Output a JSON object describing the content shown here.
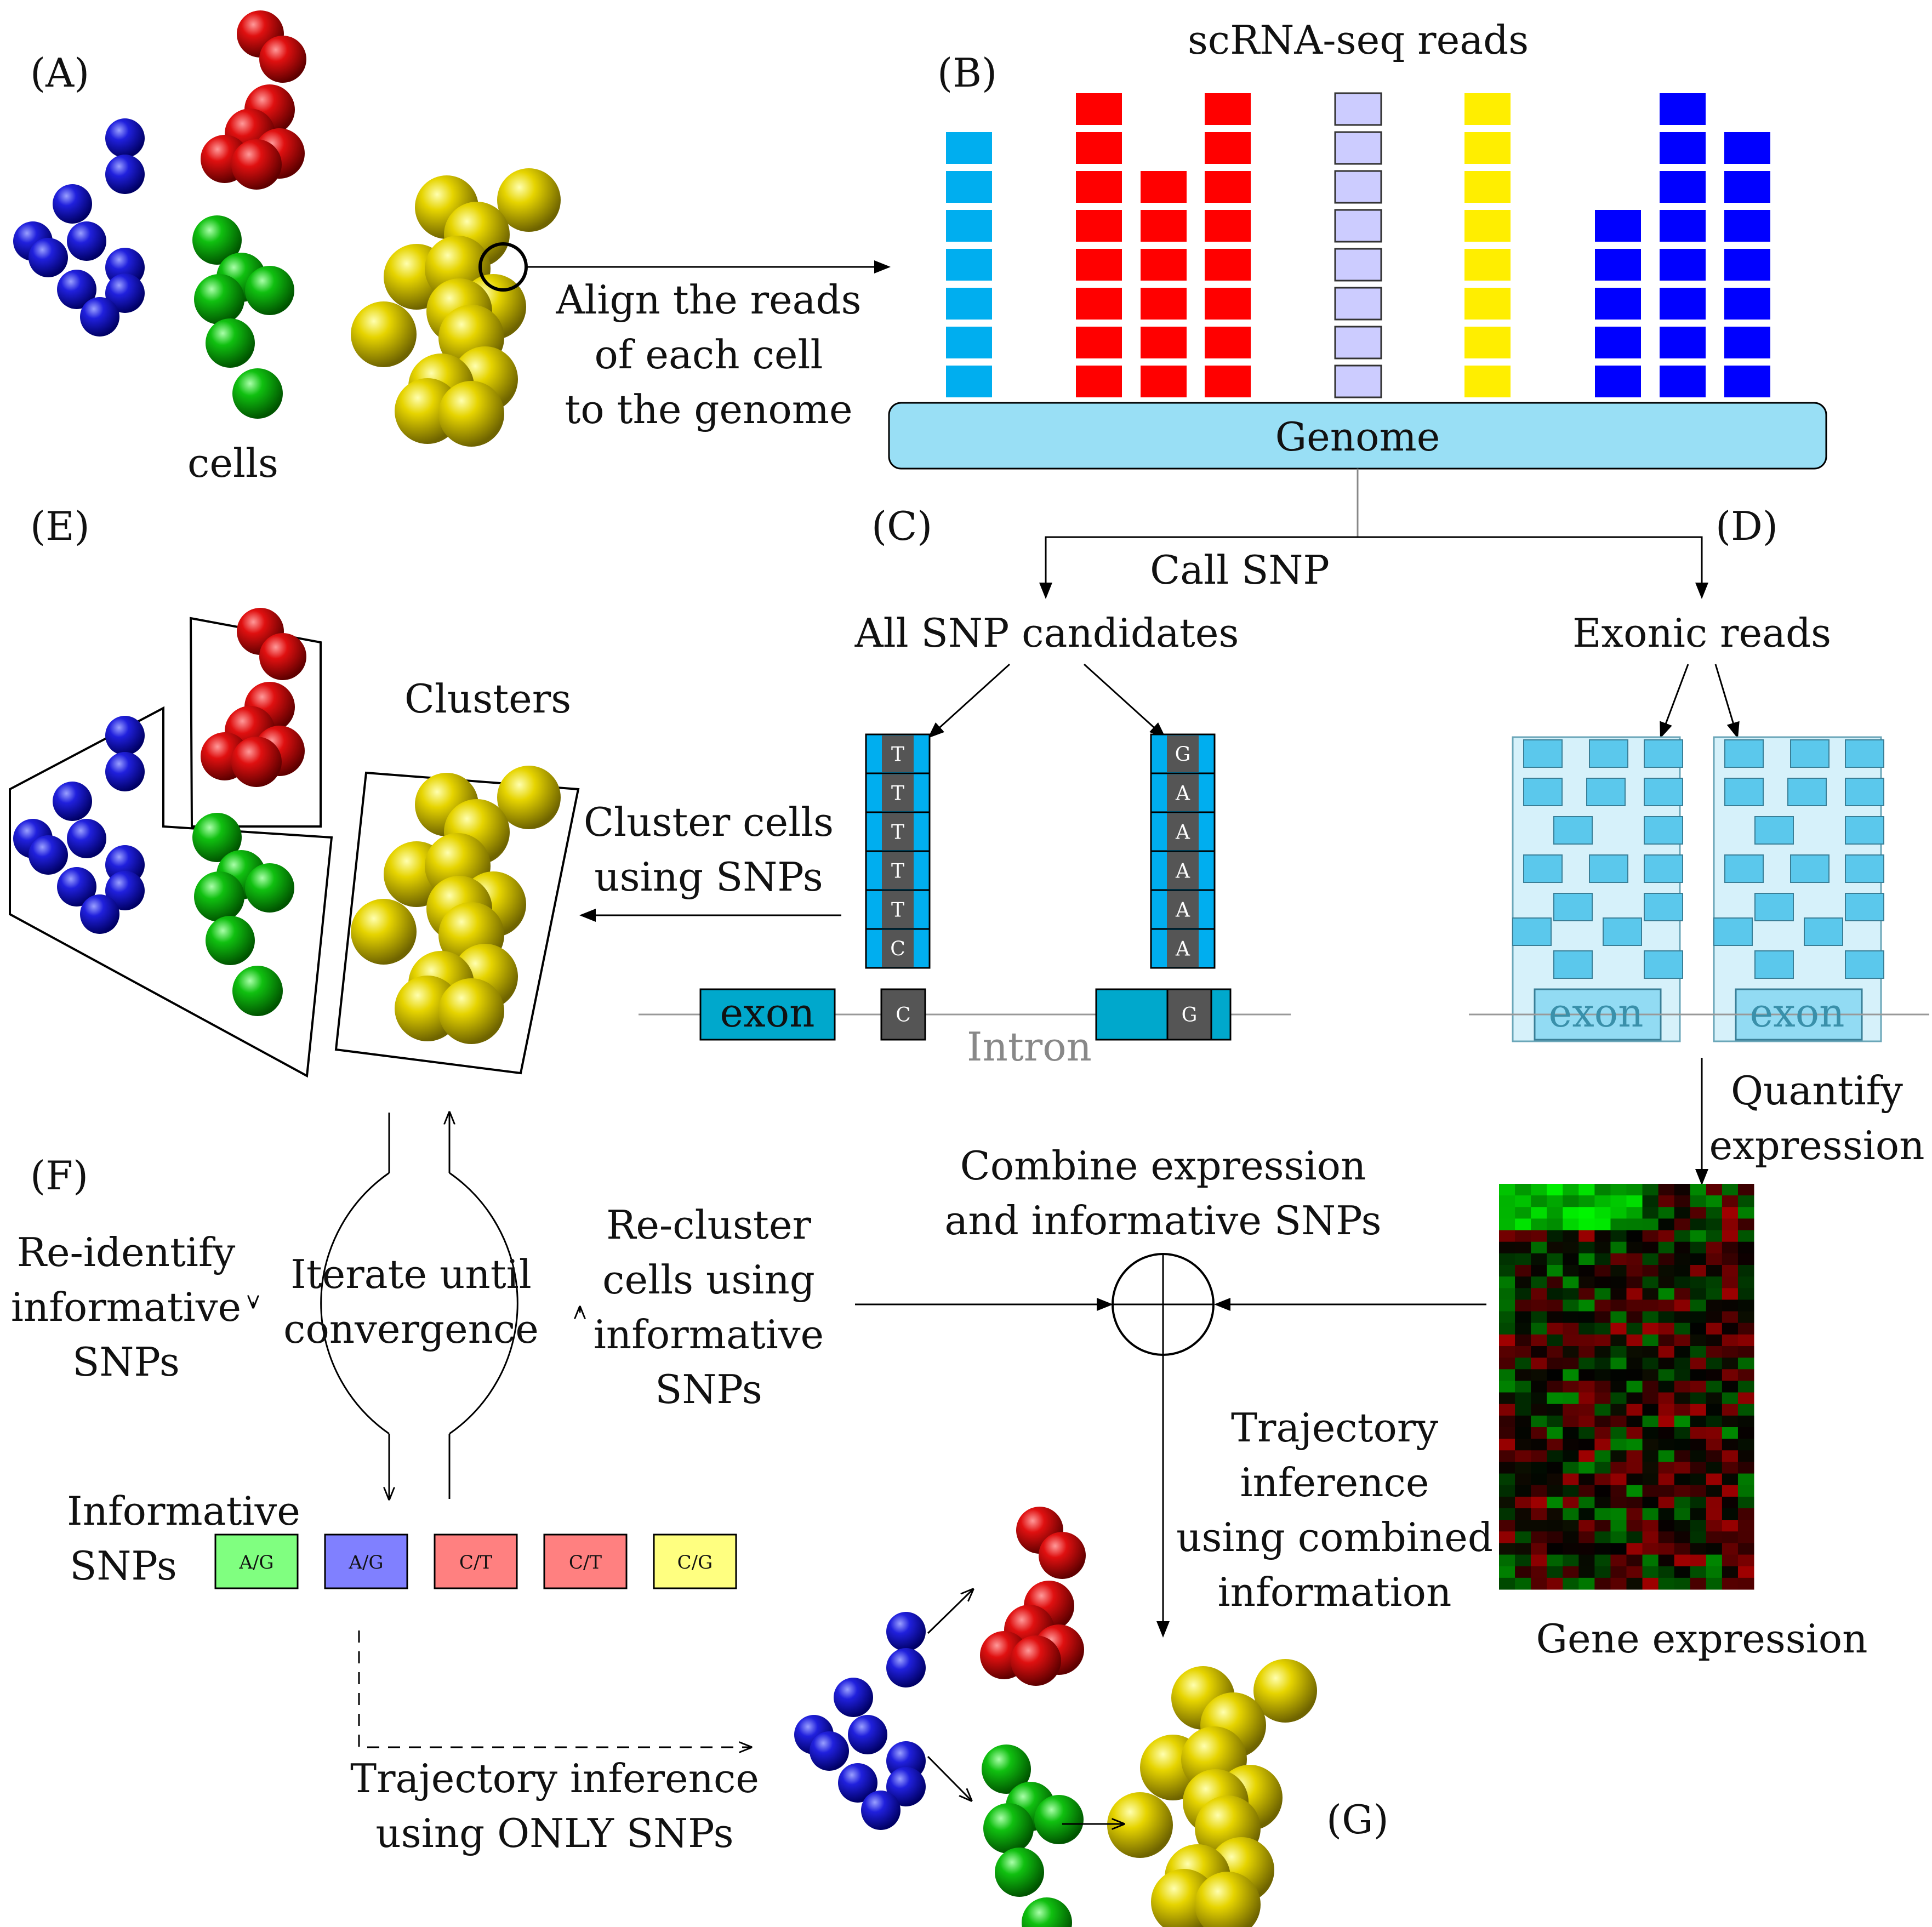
{
  "panels": {
    "a": "(A)",
    "b": "(B)",
    "c": "(C)",
    "d": "(D)",
    "e": "(E)",
    "f": "(F)",
    "g": "(G)"
  },
  "labels": {
    "cells": "cells",
    "align_reads": [
      "Align the reads",
      "of each cell",
      "to the genome"
    ],
    "scrna_reads": "scRNA-seq reads",
    "genome": "Genome",
    "call_snp": "Call SNP",
    "all_snp_candidates": "All SNP candidates",
    "exonic_reads": "Exonic reads",
    "clusters": "Clusters",
    "cluster_cells": [
      "Cluster cells",
      "using SNPs"
    ],
    "exon": "exon",
    "intron": "Intron",
    "quantify_expression": [
      "Quantify",
      "expression"
    ],
    "combine": [
      "Combine expression",
      "and informative SNPs"
    ],
    "reidentify": [
      "Re-identify",
      "informative",
      "SNPs"
    ],
    "iterate": [
      "Iterate until",
      "convergence"
    ],
    "recluster": [
      "Re-cluster",
      "cells using",
      "informative",
      "SNPs"
    ],
    "trajectory_combined": [
      "Trajectory",
      "inference",
      "using combined",
      "information"
    ],
    "informative_snps": [
      "Informative",
      "SNPs"
    ],
    "gene_expression": "Gene expression",
    "trajectory_snps": [
      "Trajectory inference",
      "using ONLY SNPs"
    ]
  },
  "read_column_t": [
    "T",
    "T",
    "T",
    "T",
    "T",
    "C"
  ],
  "read_column_g": [
    "G",
    "A",
    "A",
    "A",
    "A",
    "A"
  ],
  "genome_base_left": "C",
  "genome_base_right": "G",
  "snp_tags": [
    {
      "text": "A/G",
      "color": "#80ff80"
    },
    {
      "text": "A/G",
      "color": "#8080ff"
    },
    {
      "text": "C/T",
      "color": "#ff8080"
    },
    {
      "text": "C/T",
      "color": "#ff8080"
    },
    {
      "text": "C/G",
      "color": "#ffff80"
    }
  ],
  "colors": {
    "blue_cell": "#1010cc",
    "red_cell": "#dd1010",
    "green_cell": "#10bb10",
    "yellow_cell": "#e0d000",
    "read_cyan": "#00aeef",
    "read_red": "#ff0000",
    "read_lavender": "#ccccff",
    "read_yellow": "#ffee00",
    "read_blue": "#0000ff",
    "genome_fill": "#99dff5",
    "exon_fill": "#00a8cc",
    "exonic_bg": "#d6f1fa",
    "exonic_read": "#5bc8ec",
    "intron_gray": "#888888"
  },
  "read_stacks": [
    {
      "color": "#00aeef",
      "count": 7
    },
    {
      "color": "#ff0000",
      "count": 8
    },
    {
      "color": "#ff0000",
      "count": 6
    },
    {
      "color": "#ff0000",
      "count": 8
    },
    {
      "color": "#ccccff",
      "count": 8
    },
    {
      "color": "#ffee00",
      "count": 8
    },
    {
      "color": "#0000ff",
      "count": 5
    },
    {
      "color": "#0000ff",
      "count": 8
    },
    {
      "color": "#0000ff",
      "count": 7
    }
  ]
}
